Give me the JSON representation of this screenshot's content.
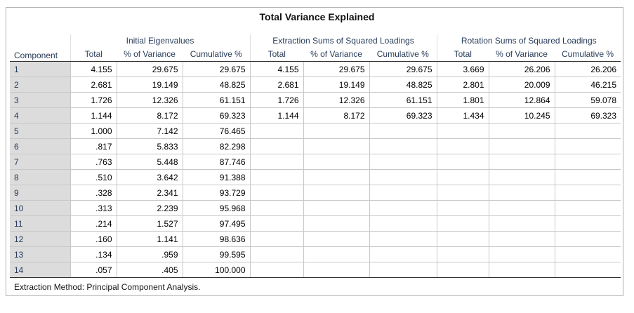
{
  "title": "Total Variance Explained",
  "header": {
    "component": "Component",
    "groups": [
      "Initial Eigenvalues",
      "Extraction Sums of Squared Loadings",
      "Rotation Sums of Squared Loadings"
    ],
    "columns": [
      "Total",
      "% of Variance",
      "Cumulative %",
      "Total",
      "% of Variance",
      "Cumulative %",
      "Total",
      "% of Variance",
      "Cumulative %"
    ]
  },
  "rows": [
    {
      "component": "1",
      "cells": [
        "4.155",
        "29.675",
        "29.675",
        "4.155",
        "29.675",
        "29.675",
        "3.669",
        "26.206",
        "26.206"
      ]
    },
    {
      "component": "2",
      "cells": [
        "2.681",
        "19.149",
        "48.825",
        "2.681",
        "19.149",
        "48.825",
        "2.801",
        "20.009",
        "46.215"
      ]
    },
    {
      "component": "3",
      "cells": [
        "1.726",
        "12.326",
        "61.151",
        "1.726",
        "12.326",
        "61.151",
        "1.801",
        "12.864",
        "59.078"
      ]
    },
    {
      "component": "4",
      "cells": [
        "1.144",
        "8.172",
        "69.323",
        "1.144",
        "8.172",
        "69.323",
        "1.434",
        "10.245",
        "69.323"
      ]
    },
    {
      "component": "5",
      "cells": [
        "1.000",
        "7.142",
        "76.465",
        "",
        "",
        "",
        "",
        "",
        ""
      ]
    },
    {
      "component": "6",
      "cells": [
        ".817",
        "5.833",
        "82.298",
        "",
        "",
        "",
        "",
        "",
        ""
      ]
    },
    {
      "component": "7",
      "cells": [
        ".763",
        "5.448",
        "87.746",
        "",
        "",
        "",
        "",
        "",
        ""
      ]
    },
    {
      "component": "8",
      "cells": [
        ".510",
        "3.642",
        "91.388",
        "",
        "",
        "",
        "",
        "",
        ""
      ]
    },
    {
      "component": "9",
      "cells": [
        ".328",
        "2.341",
        "93.729",
        "",
        "",
        "",
        "",
        "",
        ""
      ]
    },
    {
      "component": "10",
      "cells": [
        ".313",
        "2.239",
        "95.968",
        "",
        "",
        "",
        "",
        "",
        ""
      ]
    },
    {
      "component": "11",
      "cells": [
        ".214",
        "1.527",
        "97.495",
        "",
        "",
        "",
        "",
        "",
        ""
      ]
    },
    {
      "component": "12",
      "cells": [
        ".160",
        "1.141",
        "98.636",
        "",
        "",
        "",
        "",
        "",
        ""
      ]
    },
    {
      "component": "13",
      "cells": [
        ".134",
        ".959",
        "99.595",
        "",
        "",
        "",
        "",
        "",
        ""
      ]
    },
    {
      "component": "14",
      "cells": [
        ".057",
        ".405",
        "100.000",
        "",
        "",
        "",
        "",
        "",
        ""
      ]
    }
  ],
  "footnote": "Extraction Method: Principal Component Analysis."
}
